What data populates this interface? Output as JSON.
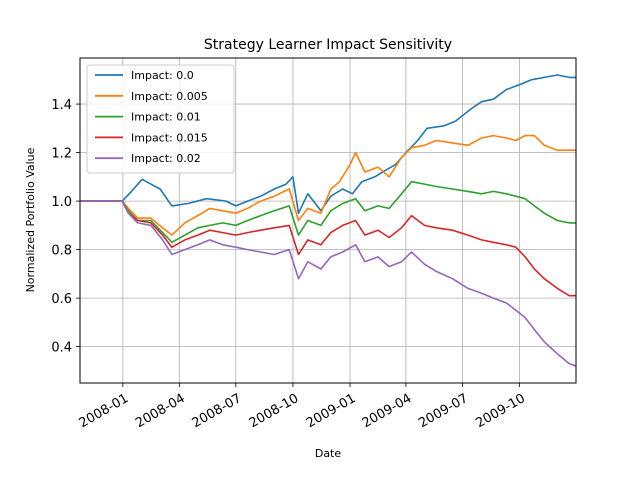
{
  "chart_data": {
    "type": "line",
    "title": "Strategy Learner Impact Sensitivity",
    "xlabel": "Date",
    "ylabel": "Normalized Portfolio Value",
    "xlim": [
      "2007-10-24",
      "2009-12-31"
    ],
    "ylim": [
      0.25,
      1.59
    ],
    "x_ticks": [
      "2008-01",
      "2008-04",
      "2008-07",
      "2008-10",
      "2009-01",
      "2009-04",
      "2009-07",
      "2009-10"
    ],
    "x_tick_dates": [
      "2008-01-01",
      "2008-04-01",
      "2008-07-01",
      "2008-10-01",
      "2009-01-01",
      "2009-04-01",
      "2009-07-01",
      "2009-10-01"
    ],
    "y_ticks": [
      0.4,
      0.6,
      0.8,
      1.0,
      1.2,
      1.4
    ],
    "y_tick_labels": [
      "0.4",
      "0.6",
      "0.8",
      "1.0",
      "1.2",
      "1.4"
    ],
    "grid": true,
    "legend_position": "top-left",
    "series": [
      {
        "name": "Impact: 0.0",
        "color": "#1f77b4",
        "points": [
          [
            "2007-10-24",
            1.0
          ],
          [
            "2007-12-31",
            1.0
          ],
          [
            "2008-01-15",
            1.04
          ],
          [
            "2008-02-01",
            1.09
          ],
          [
            "2008-02-15",
            1.07
          ],
          [
            "2008-03-01",
            1.05
          ],
          [
            "2008-03-20",
            0.98
          ],
          [
            "2008-04-15",
            0.99
          ],
          [
            "2008-05-15",
            1.01
          ],
          [
            "2008-06-15",
            1.0
          ],
          [
            "2008-07-01",
            0.98
          ],
          [
            "2008-07-20",
            1.0
          ],
          [
            "2008-08-10",
            1.02
          ],
          [
            "2008-09-01",
            1.05
          ],
          [
            "2008-09-20",
            1.07
          ],
          [
            "2008-10-01",
            1.1
          ],
          [
            "2008-10-10",
            0.95
          ],
          [
            "2008-10-25",
            1.03
          ],
          [
            "2008-11-15",
            0.96
          ],
          [
            "2008-12-01",
            1.02
          ],
          [
            "2008-12-20",
            1.05
          ],
          [
            "2009-01-05",
            1.03
          ],
          [
            "2009-01-20",
            1.08
          ],
          [
            "2009-02-10",
            1.1
          ],
          [
            "2009-03-01",
            1.13
          ],
          [
            "2009-03-15",
            1.15
          ],
          [
            "2009-04-01",
            1.2
          ],
          [
            "2009-04-20",
            1.25
          ],
          [
            "2009-05-05",
            1.3
          ],
          [
            "2009-06-01",
            1.31
          ],
          [
            "2009-06-20",
            1.33
          ],
          [
            "2009-07-15",
            1.38
          ],
          [
            "2009-08-01",
            1.41
          ],
          [
            "2009-08-20",
            1.42
          ],
          [
            "2009-09-10",
            1.46
          ],
          [
            "2009-10-01",
            1.48
          ],
          [
            "2009-10-20",
            1.5
          ],
          [
            "2009-11-10",
            1.51
          ],
          [
            "2009-12-01",
            1.52
          ],
          [
            "2009-12-20",
            1.51
          ],
          [
            "2009-12-31",
            1.51
          ]
        ]
      },
      {
        "name": "Impact: 0.005",
        "color": "#ff7f0e",
        "points": [
          [
            "2007-10-24",
            1.0
          ],
          [
            "2007-12-31",
            1.0
          ],
          [
            "2008-01-10",
            0.97
          ],
          [
            "2008-01-25",
            0.93
          ],
          [
            "2008-02-15",
            0.93
          ],
          [
            "2008-03-05",
            0.89
          ],
          [
            "2008-03-20",
            0.86
          ],
          [
            "2008-04-10",
            0.91
          ],
          [
            "2008-05-01",
            0.94
          ],
          [
            "2008-05-20",
            0.97
          ],
          [
            "2008-06-10",
            0.96
          ],
          [
            "2008-07-01",
            0.95
          ],
          [
            "2008-07-20",
            0.97
          ],
          [
            "2008-08-10",
            1.0
          ],
          [
            "2008-09-01",
            1.02
          ],
          [
            "2008-09-25",
            1.05
          ],
          [
            "2008-10-10",
            0.92
          ],
          [
            "2008-10-25",
            0.97
          ],
          [
            "2008-11-15",
            0.95
          ],
          [
            "2008-12-01",
            1.05
          ],
          [
            "2008-12-15",
            1.08
          ],
          [
            "2009-01-01",
            1.15
          ],
          [
            "2009-01-10",
            1.2
          ],
          [
            "2009-01-25",
            1.12
          ],
          [
            "2009-02-15",
            1.14
          ],
          [
            "2009-03-05",
            1.1
          ],
          [
            "2009-03-25",
            1.18
          ],
          [
            "2009-04-10",
            1.22
          ],
          [
            "2009-05-01",
            1.23
          ],
          [
            "2009-05-20",
            1.25
          ],
          [
            "2009-06-15",
            1.24
          ],
          [
            "2009-07-10",
            1.23
          ],
          [
            "2009-08-01",
            1.26
          ],
          [
            "2009-08-20",
            1.27
          ],
          [
            "2009-09-10",
            1.26
          ],
          [
            "2009-09-25",
            1.25
          ],
          [
            "2009-10-10",
            1.27
          ],
          [
            "2009-10-25",
            1.27
          ],
          [
            "2009-11-10",
            1.23
          ],
          [
            "2009-12-01",
            1.21
          ],
          [
            "2009-12-31",
            1.21
          ]
        ]
      },
      {
        "name": "Impact: 0.01",
        "color": "#2ca02c",
        "points": [
          [
            "2007-10-24",
            1.0
          ],
          [
            "2007-12-31",
            1.0
          ],
          [
            "2008-01-10",
            0.96
          ],
          [
            "2008-01-25",
            0.92
          ],
          [
            "2008-02-15",
            0.92
          ],
          [
            "2008-03-05",
            0.87
          ],
          [
            "2008-03-20",
            0.83
          ],
          [
            "2008-04-10",
            0.86
          ],
          [
            "2008-05-01",
            0.89
          ],
          [
            "2008-05-20",
            0.9
          ],
          [
            "2008-06-10",
            0.91
          ],
          [
            "2008-07-01",
            0.9
          ],
          [
            "2008-07-20",
            0.92
          ],
          [
            "2008-08-10",
            0.94
          ],
          [
            "2008-09-01",
            0.96
          ],
          [
            "2008-09-25",
            0.98
          ],
          [
            "2008-10-10",
            0.86
          ],
          [
            "2008-10-25",
            0.92
          ],
          [
            "2008-11-15",
            0.9
          ],
          [
            "2008-12-01",
            0.96
          ],
          [
            "2008-12-20",
            0.99
          ],
          [
            "2009-01-10",
            1.01
          ],
          [
            "2009-01-25",
            0.96
          ],
          [
            "2009-02-15",
            0.98
          ],
          [
            "2009-03-05",
            0.97
          ],
          [
            "2009-03-25",
            1.03
          ],
          [
            "2009-04-10",
            1.08
          ],
          [
            "2009-05-01",
            1.07
          ],
          [
            "2009-05-20",
            1.06
          ],
          [
            "2009-06-15",
            1.05
          ],
          [
            "2009-07-10",
            1.04
          ],
          [
            "2009-08-01",
            1.03
          ],
          [
            "2009-08-20",
            1.04
          ],
          [
            "2009-09-10",
            1.03
          ],
          [
            "2009-09-25",
            1.02
          ],
          [
            "2009-10-10",
            1.01
          ],
          [
            "2009-10-25",
            0.98
          ],
          [
            "2009-11-10",
            0.95
          ],
          [
            "2009-12-01",
            0.92
          ],
          [
            "2009-12-20",
            0.91
          ],
          [
            "2009-12-31",
            0.91
          ]
        ]
      },
      {
        "name": "Impact: 0.015",
        "color": "#d62728",
        "points": [
          [
            "2007-10-24",
            1.0
          ],
          [
            "2007-12-31",
            1.0
          ],
          [
            "2008-01-10",
            0.95
          ],
          [
            "2008-01-25",
            0.92
          ],
          [
            "2008-02-15",
            0.91
          ],
          [
            "2008-03-05",
            0.86
          ],
          [
            "2008-03-20",
            0.81
          ],
          [
            "2008-04-10",
            0.84
          ],
          [
            "2008-05-01",
            0.86
          ],
          [
            "2008-05-20",
            0.88
          ],
          [
            "2008-06-10",
            0.87
          ],
          [
            "2008-07-01",
            0.86
          ],
          [
            "2008-07-20",
            0.87
          ],
          [
            "2008-08-10",
            0.88
          ],
          [
            "2008-09-01",
            0.89
          ],
          [
            "2008-09-25",
            0.9
          ],
          [
            "2008-10-10",
            0.78
          ],
          [
            "2008-10-25",
            0.84
          ],
          [
            "2008-11-15",
            0.82
          ],
          [
            "2008-12-01",
            0.87
          ],
          [
            "2008-12-20",
            0.9
          ],
          [
            "2009-01-10",
            0.92
          ],
          [
            "2009-01-25",
            0.86
          ],
          [
            "2009-02-15",
            0.88
          ],
          [
            "2009-03-05",
            0.85
          ],
          [
            "2009-03-25",
            0.89
          ],
          [
            "2009-04-10",
            0.94
          ],
          [
            "2009-05-01",
            0.9
          ],
          [
            "2009-05-20",
            0.89
          ],
          [
            "2009-06-15",
            0.88
          ],
          [
            "2009-07-10",
            0.86
          ],
          [
            "2009-08-01",
            0.84
          ],
          [
            "2009-08-20",
            0.83
          ],
          [
            "2009-09-10",
            0.82
          ],
          [
            "2009-09-25",
            0.81
          ],
          [
            "2009-10-10",
            0.77
          ],
          [
            "2009-10-25",
            0.72
          ],
          [
            "2009-11-10",
            0.68
          ],
          [
            "2009-12-01",
            0.64
          ],
          [
            "2009-12-20",
            0.61
          ],
          [
            "2009-12-31",
            0.61
          ]
        ]
      },
      {
        "name": "Impact: 0.02",
        "color": "#9467bd",
        "points": [
          [
            "2007-10-24",
            1.0
          ],
          [
            "2007-12-31",
            1.0
          ],
          [
            "2008-01-10",
            0.95
          ],
          [
            "2008-01-25",
            0.91
          ],
          [
            "2008-02-15",
            0.9
          ],
          [
            "2008-03-05",
            0.84
          ],
          [
            "2008-03-20",
            0.78
          ],
          [
            "2008-04-10",
            0.8
          ],
          [
            "2008-05-01",
            0.82
          ],
          [
            "2008-05-20",
            0.84
          ],
          [
            "2008-06-10",
            0.82
          ],
          [
            "2008-07-01",
            0.81
          ],
          [
            "2008-07-20",
            0.8
          ],
          [
            "2008-08-10",
            0.79
          ],
          [
            "2008-09-01",
            0.78
          ],
          [
            "2008-09-25",
            0.8
          ],
          [
            "2008-10-10",
            0.68
          ],
          [
            "2008-10-25",
            0.75
          ],
          [
            "2008-11-15",
            0.72
          ],
          [
            "2008-12-01",
            0.77
          ],
          [
            "2008-12-20",
            0.79
          ],
          [
            "2009-01-10",
            0.82
          ],
          [
            "2009-01-25",
            0.75
          ],
          [
            "2009-02-15",
            0.77
          ],
          [
            "2009-03-05",
            0.73
          ],
          [
            "2009-03-25",
            0.75
          ],
          [
            "2009-04-10",
            0.79
          ],
          [
            "2009-05-01",
            0.74
          ],
          [
            "2009-05-20",
            0.71
          ],
          [
            "2009-06-15",
            0.68
          ],
          [
            "2009-07-10",
            0.64
          ],
          [
            "2009-08-01",
            0.62
          ],
          [
            "2009-08-20",
            0.6
          ],
          [
            "2009-09-10",
            0.58
          ],
          [
            "2009-09-25",
            0.55
          ],
          [
            "2009-10-10",
            0.52
          ],
          [
            "2009-10-25",
            0.47
          ],
          [
            "2009-11-10",
            0.42
          ],
          [
            "2009-12-01",
            0.37
          ],
          [
            "2009-12-20",
            0.33
          ],
          [
            "2009-12-31",
            0.32
          ]
        ]
      }
    ]
  }
}
